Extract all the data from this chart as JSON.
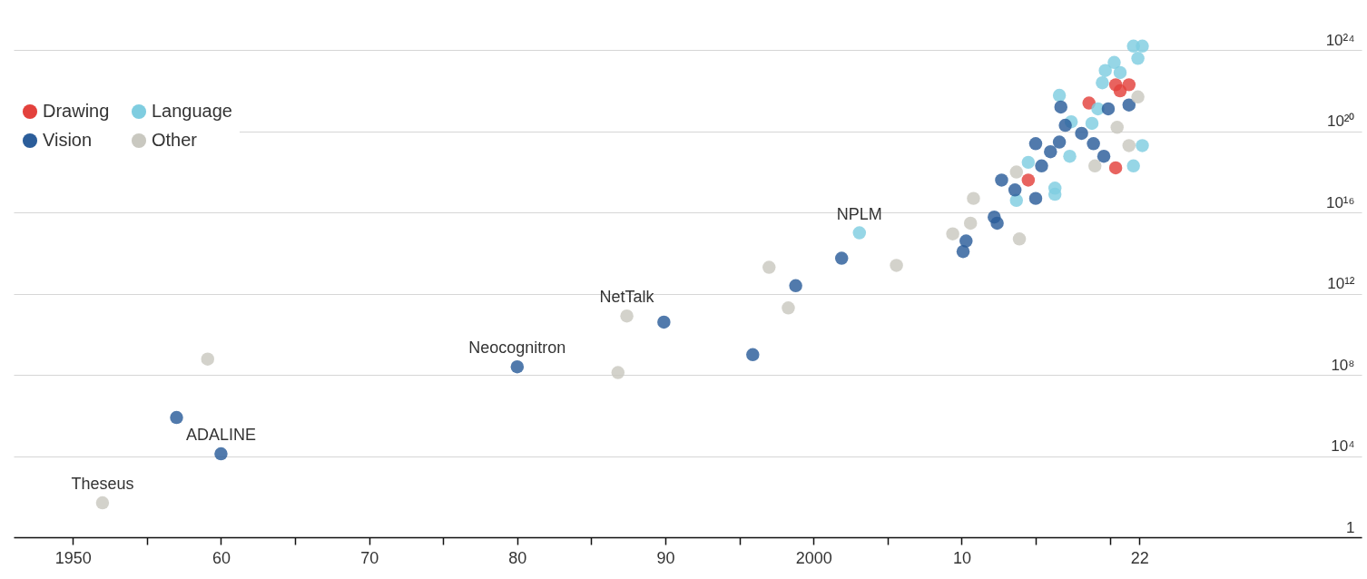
{
  "chart_data": {
    "type": "scatter",
    "log": "y",
    "grid": "y",
    "legend": "top left",
    "xlim": [
      1946,
      2037
    ],
    "xticks": [
      1950,
      {
        "value": 1955,
        "label": null
      },
      {
        "value": 1960,
        "label": "60"
      },
      {
        "value": 1965,
        "label": null
      },
      {
        "value": 1970,
        "label": "70"
      },
      {
        "value": 1975,
        "label": null
      },
      {
        "value": 1980,
        "label": "80"
      },
      {
        "value": 1985,
        "label": null
      },
      {
        "value": 1990,
        "label": "90"
      },
      {
        "value": 1995,
        "label": null
      },
      2000,
      {
        "value": 2005,
        "label": null
      },
      {
        "value": 2010,
        "label": "10"
      },
      {
        "value": 2015,
        "label": null
      },
      {
        "value": 2020,
        "label": null
      },
      {
        "value": 2022,
        "label": "22"
      }
    ],
    "ylim": [
      1,
      3e+26
    ],
    "yticks": [
      1,
      {
        "value": 10000.0,
        "label": "10⁴"
      },
      {
        "value": 100000000.0,
        "label": "10⁸"
      },
      {
        "value": 1000000000000.0,
        "label": "10¹²"
      },
      {
        "value": 1e+16,
        "label": "10¹⁶"
      },
      {
        "value": 1e+20,
        "label": "10²⁰"
      },
      {
        "value": 1e+24,
        "label": "10²⁴"
      }
    ],
    "series": [
      {
        "name": "Drawing",
        "color": "#e3413c",
        "x": [
          2014.5,
          2020.4,
          2018.6,
          2020.4,
          2020.7,
          2021.3
        ],
        "values": [
          4e+17,
          1.6e+18,
          2.5e+21,
          2e+22,
          1e+22,
          2e+22
        ]
      },
      {
        "name": "Language",
        "color": "#7fcde0",
        "x": [
          2003.1,
          2016.3,
          2016.3,
          2013.7,
          2014.5,
          2017.3,
          2021.6,
          2022.2,
          2017.4,
          2016.6,
          2018.8,
          2019.2,
          2019.5,
          2019.7,
          2020.3,
          2021.9,
          2022.2,
          2021.6,
          2020.7
        ],
        "values": [
          1000000000000000.0,
          8e+16,
          1.6e+17,
          4e+16,
          3e+18,
          6e+18,
          2e+18,
          2e+19,
          3e+20,
          6e+21,
          2.5e+20,
          1.3e+21,
          2.5e+22,
          1e+23,
          2.5e+23,
          4e+23,
          1.6e+24,
          1.6e+24,
          8e+22
        ]
      },
      {
        "name": "Vision",
        "color": "#2b5d9a",
        "x": [
          1957.0,
          1960.0,
          1980.0,
          1989.9,
          1995.9,
          1998.8,
          2001.9,
          2010.1,
          2010.3,
          2012.2,
          2012.4,
          2015.0,
          2013.6,
          2012.7,
          2015.4,
          2015.0,
          2016.0,
          2016.6,
          2019.6,
          2018.9,
          2018.1,
          2017.0,
          2016.7,
          2019.9,
          2021.3
        ],
        "values": [
          800000.0,
          13000.0,
          250000000.0,
          40000000000.0,
          1000000000.0,
          2500000000000.0,
          56000000000000.0,
          120000000000000.0,
          400000000000000.0,
          6000000000000000.0,
          3000000000000000.0,
          5e+16,
          1.3e+17,
          4e+17,
          2e+18,
          2.5e+19,
          1e+19,
          3e+19,
          6e+18,
          2.5e+19,
          8e+19,
          2e+20,
          1.6e+21,
          1.3e+21,
          2e+21
        ]
      },
      {
        "name": "Other",
        "color": "#c9c8c0",
        "x": [
          1952.0,
          1959.1,
          1986.8,
          1987.4,
          1998.3,
          1997.0,
          2005.6,
          2009.4,
          2013.9,
          2010.6,
          2010.8,
          2013.7,
          2019.0,
          2021.3,
          2020.5,
          2021.9
        ],
        "values": [
          50,
          600000000.0,
          130000000.0,
          80000000000.0,
          200000000000.0,
          20000000000000.0,
          25000000000000.0,
          900000000000000.0,
          500000000000000.0,
          3000000000000000.0,
          5e+16,
          1e+18,
          2e+18,
          2e+19,
          1.6e+20,
          5e+21
        ]
      }
    ],
    "annotations": [
      {
        "text": "Theseus",
        "x": 1952.0,
        "y": 50
      },
      {
        "text": "ADALINE",
        "x": 1960.0,
        "y": 13000.0
      },
      {
        "text": "Neocognitron",
        "x": 1980.0,
        "y": 250000000.0
      },
      {
        "text": "NetTalk",
        "x": 1987.4,
        "y": 80000000000.0
      },
      {
        "text": "NPLM",
        "x": 2003.1,
        "y": 1000000000000000.0
      }
    ]
  }
}
